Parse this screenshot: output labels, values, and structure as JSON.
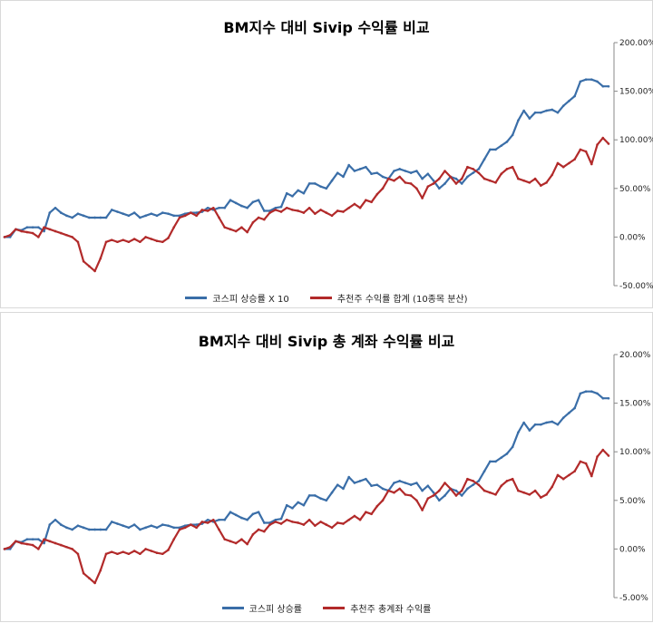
{
  "colors": {
    "kospi": "#3a6ea8",
    "portfolio": "#b22a2a"
  },
  "chart_data": [
    {
      "type": "line",
      "title": "BM지수 대비 Sivip 수익률 비교",
      "ylim": [
        -0.5,
        2.0
      ],
      "yticks": [
        "200.00%",
        "150.00%",
        "100.00%",
        "50.00%",
        "0.00%",
        "-50.00%"
      ],
      "ytick_values": [
        2.0,
        1.5,
        1.0,
        0.5,
        0.0,
        -0.5
      ],
      "legend_position": "bottom",
      "series": [
        {
          "name": "코스피 상승률 X 10",
          "color": "#3a6ea8",
          "values": [
            0.0,
            0.0,
            0.08,
            0.07,
            0.1,
            0.1,
            0.1,
            0.06,
            0.25,
            0.3,
            0.25,
            0.22,
            0.2,
            0.24,
            0.22,
            0.2,
            0.2,
            0.2,
            0.2,
            0.28,
            0.26,
            0.24,
            0.22,
            0.25,
            0.2,
            0.22,
            0.24,
            0.22,
            0.25,
            0.24,
            0.22,
            0.22,
            0.24,
            0.25,
            0.25,
            0.26,
            0.3,
            0.28,
            0.3,
            0.3,
            0.38,
            0.35,
            0.32,
            0.3,
            0.36,
            0.38,
            0.27,
            0.27,
            0.3,
            0.31,
            0.45,
            0.42,
            0.48,
            0.45,
            0.55,
            0.55,
            0.52,
            0.5,
            0.58,
            0.66,
            0.62,
            0.74,
            0.68,
            0.7,
            0.72,
            0.65,
            0.66,
            0.62,
            0.6,
            0.68,
            0.7,
            0.68,
            0.66,
            0.68,
            0.6,
            0.65,
            0.58,
            0.5,
            0.55,
            0.62,
            0.6,
            0.55,
            0.62,
            0.66,
            0.7,
            0.8,
            0.9,
            0.9,
            0.94,
            0.98,
            1.05,
            1.2,
            1.3,
            1.22,
            1.28,
            1.28,
            1.3,
            1.31,
            1.28,
            1.35,
            1.4,
            1.45,
            1.6,
            1.62,
            1.62,
            1.6,
            1.55,
            1.55
          ]
        },
        {
          "name": "추천주 수익률 합계 (10종목 분산)",
          "color": "#b22a2a",
          "values": [
            0.0,
            0.02,
            0.08,
            0.06,
            0.05,
            0.04,
            0.0,
            0.1,
            0.08,
            0.06,
            0.04,
            0.02,
            0.0,
            -0.05,
            -0.25,
            -0.3,
            -0.35,
            -0.22,
            -0.05,
            -0.03,
            -0.05,
            -0.03,
            -0.05,
            -0.02,
            -0.05,
            0.0,
            -0.02,
            -0.04,
            -0.05,
            -0.01,
            0.1,
            0.2,
            0.22,
            0.25,
            0.22,
            0.28,
            0.27,
            0.3,
            0.2,
            0.1,
            0.08,
            0.06,
            0.1,
            0.05,
            0.15,
            0.2,
            0.18,
            0.25,
            0.28,
            0.26,
            0.3,
            0.28,
            0.27,
            0.25,
            0.3,
            0.24,
            0.28,
            0.25,
            0.22,
            0.27,
            0.26,
            0.3,
            0.34,
            0.3,
            0.38,
            0.36,
            0.44,
            0.5,
            0.6,
            0.58,
            0.62,
            0.56,
            0.55,
            0.5,
            0.4,
            0.52,
            0.55,
            0.6,
            0.68,
            0.62,
            0.55,
            0.6,
            0.72,
            0.7,
            0.66,
            0.6,
            0.58,
            0.56,
            0.65,
            0.7,
            0.72,
            0.6,
            0.58,
            0.56,
            0.6,
            0.53,
            0.56,
            0.64,
            0.76,
            0.72,
            0.76,
            0.8,
            0.9,
            0.88,
            0.75,
            0.95,
            1.02,
            0.96
          ]
        }
      ]
    },
    {
      "type": "line",
      "title": "BM지수 대비 Sivip 총 계좌 수익률 비교",
      "ylim": [
        -5,
        20
      ],
      "yticks": [
        "20.00%",
        "15.00%",
        "10.00%",
        "5.00%",
        "0.00%",
        "-5.00%"
      ],
      "ytick_values": [
        20,
        15,
        10,
        5,
        0,
        -5
      ],
      "legend_position": "bottom",
      "series": [
        {
          "name": "코스피 상승률",
          "color": "#3a6ea8",
          "values": [
            0.0,
            0.0,
            0.8,
            0.7,
            1.0,
            1.0,
            1.0,
            0.6,
            2.5,
            3.0,
            2.5,
            2.2,
            2.0,
            2.4,
            2.2,
            2.0,
            2.0,
            2.0,
            2.0,
            2.8,
            2.6,
            2.4,
            2.2,
            2.5,
            2.0,
            2.2,
            2.4,
            2.2,
            2.5,
            2.4,
            2.2,
            2.2,
            2.4,
            2.5,
            2.5,
            2.6,
            3.0,
            2.8,
            3.0,
            3.0,
            3.8,
            3.5,
            3.2,
            3.0,
            3.6,
            3.8,
            2.7,
            2.7,
            3.0,
            3.1,
            4.5,
            4.2,
            4.8,
            4.5,
            5.5,
            5.5,
            5.2,
            5.0,
            5.8,
            6.6,
            6.2,
            7.4,
            6.8,
            7.0,
            7.2,
            6.5,
            6.6,
            6.2,
            6.0,
            6.8,
            7.0,
            6.8,
            6.6,
            6.8,
            6.0,
            6.5,
            5.8,
            5.0,
            5.5,
            6.2,
            6.0,
            5.5,
            6.2,
            6.6,
            7.0,
            8.0,
            9.0,
            9.0,
            9.4,
            9.8,
            10.5,
            12.0,
            13.0,
            12.2,
            12.8,
            12.8,
            13.0,
            13.1,
            12.8,
            13.5,
            14.0,
            14.5,
            16.0,
            16.2,
            16.2,
            16.0,
            15.5,
            15.5
          ]
        },
        {
          "name": "추천주 총계좌 수익률",
          "color": "#b22a2a",
          "values": [
            0.0,
            0.2,
            0.8,
            0.6,
            0.5,
            0.4,
            0.0,
            1.0,
            0.8,
            0.6,
            0.4,
            0.2,
            0.0,
            -0.5,
            -2.5,
            -3.0,
            -3.5,
            -2.2,
            -0.5,
            -0.3,
            -0.5,
            -0.3,
            -0.5,
            -0.2,
            -0.5,
            0.0,
            -0.2,
            -0.4,
            -0.5,
            -0.1,
            1.0,
            2.0,
            2.2,
            2.5,
            2.2,
            2.8,
            2.7,
            3.0,
            2.0,
            1.0,
            0.8,
            0.6,
            1.0,
            0.5,
            1.5,
            2.0,
            1.8,
            2.5,
            2.8,
            2.6,
            3.0,
            2.8,
            2.7,
            2.5,
            3.0,
            2.4,
            2.8,
            2.5,
            2.2,
            2.7,
            2.6,
            3.0,
            3.4,
            3.0,
            3.8,
            3.6,
            4.4,
            5.0,
            6.0,
            5.8,
            6.2,
            5.6,
            5.5,
            5.0,
            4.0,
            5.2,
            5.5,
            6.0,
            6.8,
            6.2,
            5.5,
            6.0,
            7.2,
            7.0,
            6.6,
            6.0,
            5.8,
            5.6,
            6.5,
            7.0,
            7.2,
            6.0,
            5.8,
            5.6,
            6.0,
            5.3,
            5.6,
            6.4,
            7.6,
            7.2,
            7.6,
            8.0,
            9.0,
            8.8,
            7.5,
            9.5,
            10.2,
            9.6
          ]
        }
      ]
    }
  ]
}
